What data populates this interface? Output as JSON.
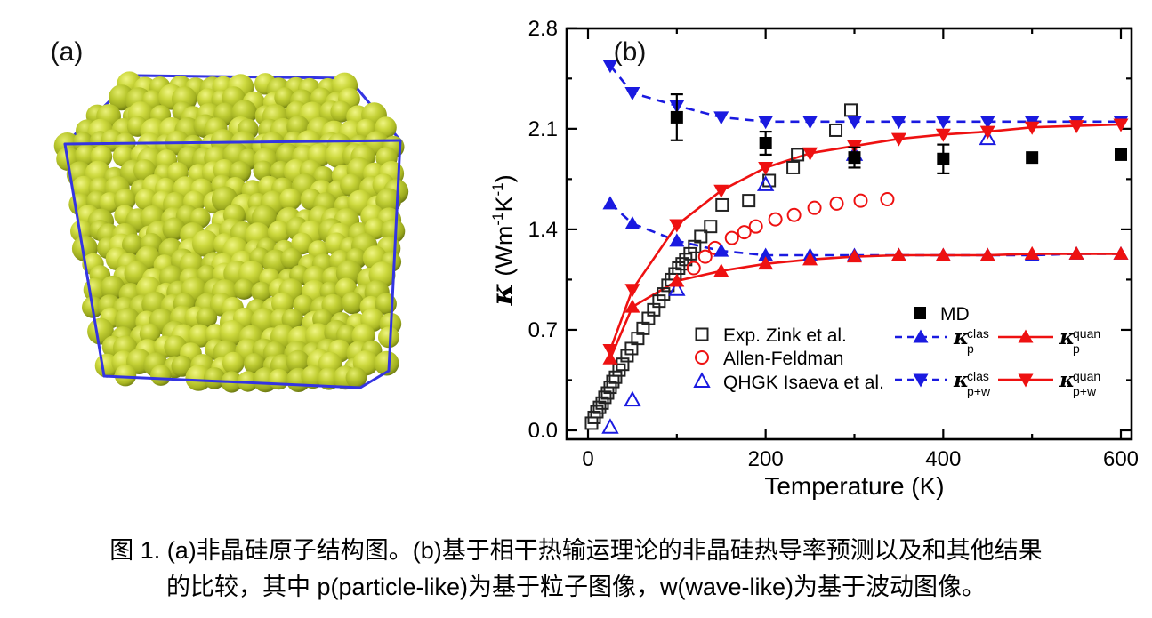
{
  "figure": {
    "panel_a_label": "(a)",
    "panel_b_label": "(b)"
  },
  "caption": {
    "line1": "图 1. (a)非晶硅原子结构图。(b)基于相干热输运理论的非晶硅热导率预测以及和其他结果",
    "line2": "的比较，其中 p(particle-like)为基于粒子图像，w(wave-like)为基于波动图像。"
  },
  "colors": {
    "blue": "#1a1ae0",
    "red": "#ee1111",
    "black": "#000000",
    "open_square_stroke": "#222222",
    "box_blue": "#3434e2",
    "sphere_base": "#c3cf33"
  },
  "chart_data": {
    "type": "scatter",
    "xlabel": "Temperature (K)",
    "ylabel_parts": {
      "symbol": "κ",
      "open": "(Wm",
      "sup1": "-1",
      "k": "K",
      "sup2": "-1",
      "close": ")"
    },
    "xlim": [
      -24,
      612
    ],
    "ylim": [
      -0.06,
      2.8
    ],
    "xticks": {
      "major": [
        0,
        200,
        400,
        600
      ],
      "minor": [
        100,
        300,
        500
      ],
      "labels": [
        "0",
        "200",
        "400",
        "600"
      ]
    },
    "yticks": {
      "major": [
        0,
        0.7,
        1.4,
        2.1,
        2.8
      ],
      "minor": [
        0.35,
        1.05,
        1.75,
        2.45
      ],
      "labels": [
        "0.0",
        "0.7",
        "1.4",
        "2.1",
        "2.8"
      ]
    },
    "legend_position": "inside lower-right",
    "grid": false,
    "series": [
      {
        "id": "exp_zink",
        "label": "Exp. Zink et al.",
        "marker": "open-square",
        "color": "black",
        "line": "none",
        "points": [
          [
            4,
            0.05
          ],
          [
            7,
            0.09
          ],
          [
            10,
            0.13
          ],
          [
            13,
            0.16
          ],
          [
            16,
            0.19
          ],
          [
            19,
            0.23
          ],
          [
            22,
            0.26
          ],
          [
            25,
            0.3
          ],
          [
            28,
            0.34
          ],
          [
            31,
            0.37
          ],
          [
            35,
            0.42
          ],
          [
            39,
            0.46
          ],
          [
            44,
            0.52
          ],
          [
            49,
            0.57
          ],
          [
            56,
            0.64
          ],
          [
            62,
            0.71
          ],
          [
            68,
            0.78
          ],
          [
            74,
            0.84
          ],
          [
            80,
            0.9
          ],
          [
            85,
            0.95
          ],
          [
            90,
            1.01
          ],
          [
            94,
            1.05
          ],
          [
            98,
            1.09
          ],
          [
            102,
            1.13
          ],
          [
            106,
            1.16
          ],
          [
            110,
            1.19
          ],
          [
            115,
            1.23
          ],
          [
            120,
            1.28
          ],
          [
            127,
            1.35
          ],
          [
            138,
            1.42
          ],
          [
            151,
            1.57
          ],
          [
            181,
            1.6
          ],
          [
            204,
            1.74
          ],
          [
            231,
            1.83
          ],
          [
            236,
            1.92
          ],
          [
            279,
            2.09
          ],
          [
            296,
            2.23
          ]
        ]
      },
      {
        "id": "allen_feldman",
        "label": "Allen-Feldman",
        "marker": "open-circle",
        "color": "red",
        "line": "none",
        "points": [
          [
            119,
            1.13
          ],
          [
            132,
            1.21
          ],
          [
            143,
            1.27
          ],
          [
            162,
            1.34
          ],
          [
            176,
            1.38
          ],
          [
            189,
            1.42
          ],
          [
            211,
            1.47
          ],
          [
            232,
            1.5
          ],
          [
            255,
            1.55
          ],
          [
            280,
            1.58
          ],
          [
            307,
            1.6
          ],
          [
            337,
            1.61
          ]
        ]
      },
      {
        "id": "qhgk_isaeva",
        "label": "QHGK Isaeva et al.",
        "marker": "open-triangle-up",
        "color": "blue",
        "line": "none",
        "points": [
          [
            25,
            0.02
          ],
          [
            50,
            0.21
          ],
          [
            100,
            0.98
          ],
          [
            200,
            1.71
          ],
          [
            300,
            1.92
          ],
          [
            450,
            2.03
          ]
        ]
      },
      {
        "id": "md",
        "label": "MD",
        "marker": "filled-square",
        "color": "black",
        "line": "none",
        "points": [
          [
            100,
            2.18
          ],
          [
            200,
            2.0
          ],
          [
            300,
            1.9
          ],
          [
            400,
            1.89
          ],
          [
            500,
            1.9
          ],
          [
            600,
            1.92
          ]
        ],
        "yerr": [
          0.16,
          0.08,
          0.07,
          0.1,
          0,
          0
        ]
      },
      {
        "id": "kp_clas",
        "label": {
          "kappa": "κ",
          "sup": "clas",
          "sub": "p"
        },
        "marker": "filled-triangle-up",
        "color": "blue",
        "line": "dashed",
        "x": [
          25,
          50,
          100,
          150,
          200,
          250,
          300,
          350,
          400,
          450,
          500,
          550,
          600
        ],
        "y": [
          1.58,
          1.44,
          1.32,
          1.25,
          1.22,
          1.22,
          1.22,
          1.22,
          1.22,
          1.22,
          1.22,
          1.23,
          1.23
        ]
      },
      {
        "id": "kpw_clas",
        "label": {
          "kappa": "κ",
          "sup": "clas",
          "sub": "p+w"
        },
        "marker": "filled-triangle-down",
        "color": "blue",
        "line": "dashed",
        "x": [
          25,
          50,
          100,
          150,
          200,
          250,
          300,
          350,
          400,
          450,
          500,
          550,
          600
        ],
        "y": [
          2.54,
          2.35,
          2.26,
          2.18,
          2.15,
          2.15,
          2.15,
          2.15,
          2.15,
          2.15,
          2.15,
          2.15,
          2.15
        ]
      },
      {
        "id": "kp_quan",
        "label": {
          "kappa": "κ",
          "sup": "quan",
          "sub": "p"
        },
        "marker": "filled-triangle-up",
        "color": "red",
        "line": "solid",
        "x": [
          25,
          50,
          100,
          150,
          200,
          250,
          300,
          350,
          400,
          450,
          500,
          550,
          600
        ],
        "y": [
          0.5,
          0.86,
          1.04,
          1.11,
          1.16,
          1.19,
          1.21,
          1.22,
          1.22,
          1.22,
          1.23,
          1.23,
          1.23
        ]
      },
      {
        "id": "kpw_quan",
        "label": {
          "kappa": "κ",
          "sup": "quan",
          "sub": "p+w"
        },
        "marker": "filled-triangle-down",
        "color": "red",
        "line": "solid",
        "x": [
          25,
          50,
          100,
          150,
          200,
          250,
          300,
          350,
          400,
          450,
          500,
          550,
          600
        ],
        "y": [
          0.56,
          0.98,
          1.43,
          1.67,
          1.83,
          1.93,
          1.98,
          2.03,
          2.06,
          2.08,
          2.11,
          2.12,
          2.13
        ]
      }
    ]
  }
}
